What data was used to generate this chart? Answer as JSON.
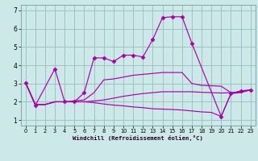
{
  "background_color": "#cce8e8",
  "line_color": "#aa00aa",
  "grid_color": "#99bbbb",
  "xlabel": "Windchill (Refroidissement éolien,°C)",
  "xlim": [
    -0.5,
    23.5
  ],
  "ylim": [
    0.7,
    7.3
  ],
  "yticks": [
    1,
    2,
    3,
    4,
    5,
    6,
    7
  ],
  "xticks": [
    0,
    1,
    2,
    3,
    4,
    5,
    6,
    7,
    8,
    9,
    10,
    11,
    12,
    13,
    14,
    15,
    16,
    17,
    18,
    19,
    20,
    21,
    22,
    23
  ],
  "series": [
    {
      "x": [
        0,
        1,
        3,
        4,
        5,
        6,
        7,
        8,
        9,
        10,
        11,
        12,
        13,
        14,
        15,
        16,
        17,
        20,
        21,
        22,
        23
      ],
      "y": [
        3.05,
        1.8,
        3.8,
        2.0,
        2.0,
        2.5,
        4.4,
        4.4,
        4.2,
        4.55,
        4.55,
        4.45,
        5.4,
        6.6,
        6.65,
        6.65,
        5.2,
        1.2,
        2.45,
        2.6,
        2.65
      ],
      "marker": "D",
      "marker_size": 2.5
    },
    {
      "x": [
        0,
        1,
        2,
        3,
        4,
        5,
        6,
        7,
        8,
        9,
        10,
        11,
        12,
        13,
        14,
        15,
        16,
        17,
        18,
        19,
        20,
        21,
        22,
        23
      ],
      "y": [
        3.05,
        1.85,
        1.85,
        2.0,
        2.0,
        2.05,
        2.1,
        2.5,
        3.2,
        3.25,
        3.35,
        3.45,
        3.5,
        3.55,
        3.6,
        3.6,
        3.6,
        3.0,
        2.9,
        2.88,
        2.85,
        2.5,
        2.55,
        2.65
      ],
      "marker": null
    },
    {
      "x": [
        0,
        1,
        2,
        3,
        4,
        5,
        6,
        7,
        8,
        9,
        10,
        11,
        12,
        13,
        14,
        15,
        16,
        17,
        18,
        19,
        20,
        21,
        22,
        23
      ],
      "y": [
        3.05,
        1.85,
        1.85,
        2.0,
        2.0,
        2.0,
        2.0,
        2.05,
        2.1,
        2.2,
        2.3,
        2.38,
        2.45,
        2.5,
        2.55,
        2.55,
        2.55,
        2.55,
        2.52,
        2.5,
        2.48,
        2.5,
        2.55,
        2.65
      ],
      "marker": null
    },
    {
      "x": [
        0,
        1,
        2,
        3,
        4,
        5,
        6,
        7,
        8,
        9,
        10,
        11,
        12,
        13,
        14,
        15,
        16,
        17,
        18,
        19,
        20,
        21,
        22,
        23
      ],
      "y": [
        3.05,
        1.85,
        1.85,
        2.0,
        2.0,
        2.0,
        2.0,
        1.95,
        1.88,
        1.82,
        1.78,
        1.72,
        1.68,
        1.62,
        1.6,
        1.58,
        1.55,
        1.5,
        1.45,
        1.42,
        1.2,
        2.45,
        2.5,
        2.65
      ],
      "marker": null
    }
  ]
}
